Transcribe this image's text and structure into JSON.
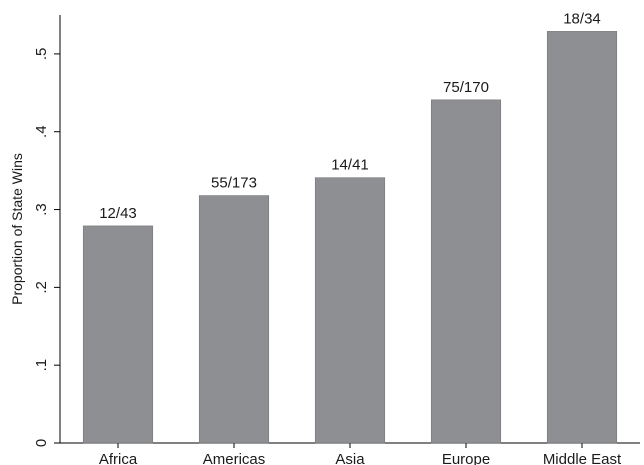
{
  "chart_data": {
    "type": "bar",
    "ylabel": "Proportion of State Wins",
    "xlabel": "",
    "ylim": [
      0,
      0.55
    ],
    "yticks": [
      0,
      0.1,
      0.2,
      0.3,
      0.4,
      0.5
    ],
    "ytick_labels": [
      "0",
      ".1",
      ".2",
      ".3",
      ".4",
      ".5"
    ],
    "categories": [
      "Africa",
      "Americas",
      "Asia",
      "Europe",
      "Middle East"
    ],
    "values": [
      0.279,
      0.318,
      0.341,
      0.441,
      0.529
    ],
    "data_labels": [
      "12/43",
      "55/173",
      "14/41",
      "75/170",
      "18/34"
    ],
    "bar_color": "#8e8f93",
    "grid": false
  }
}
